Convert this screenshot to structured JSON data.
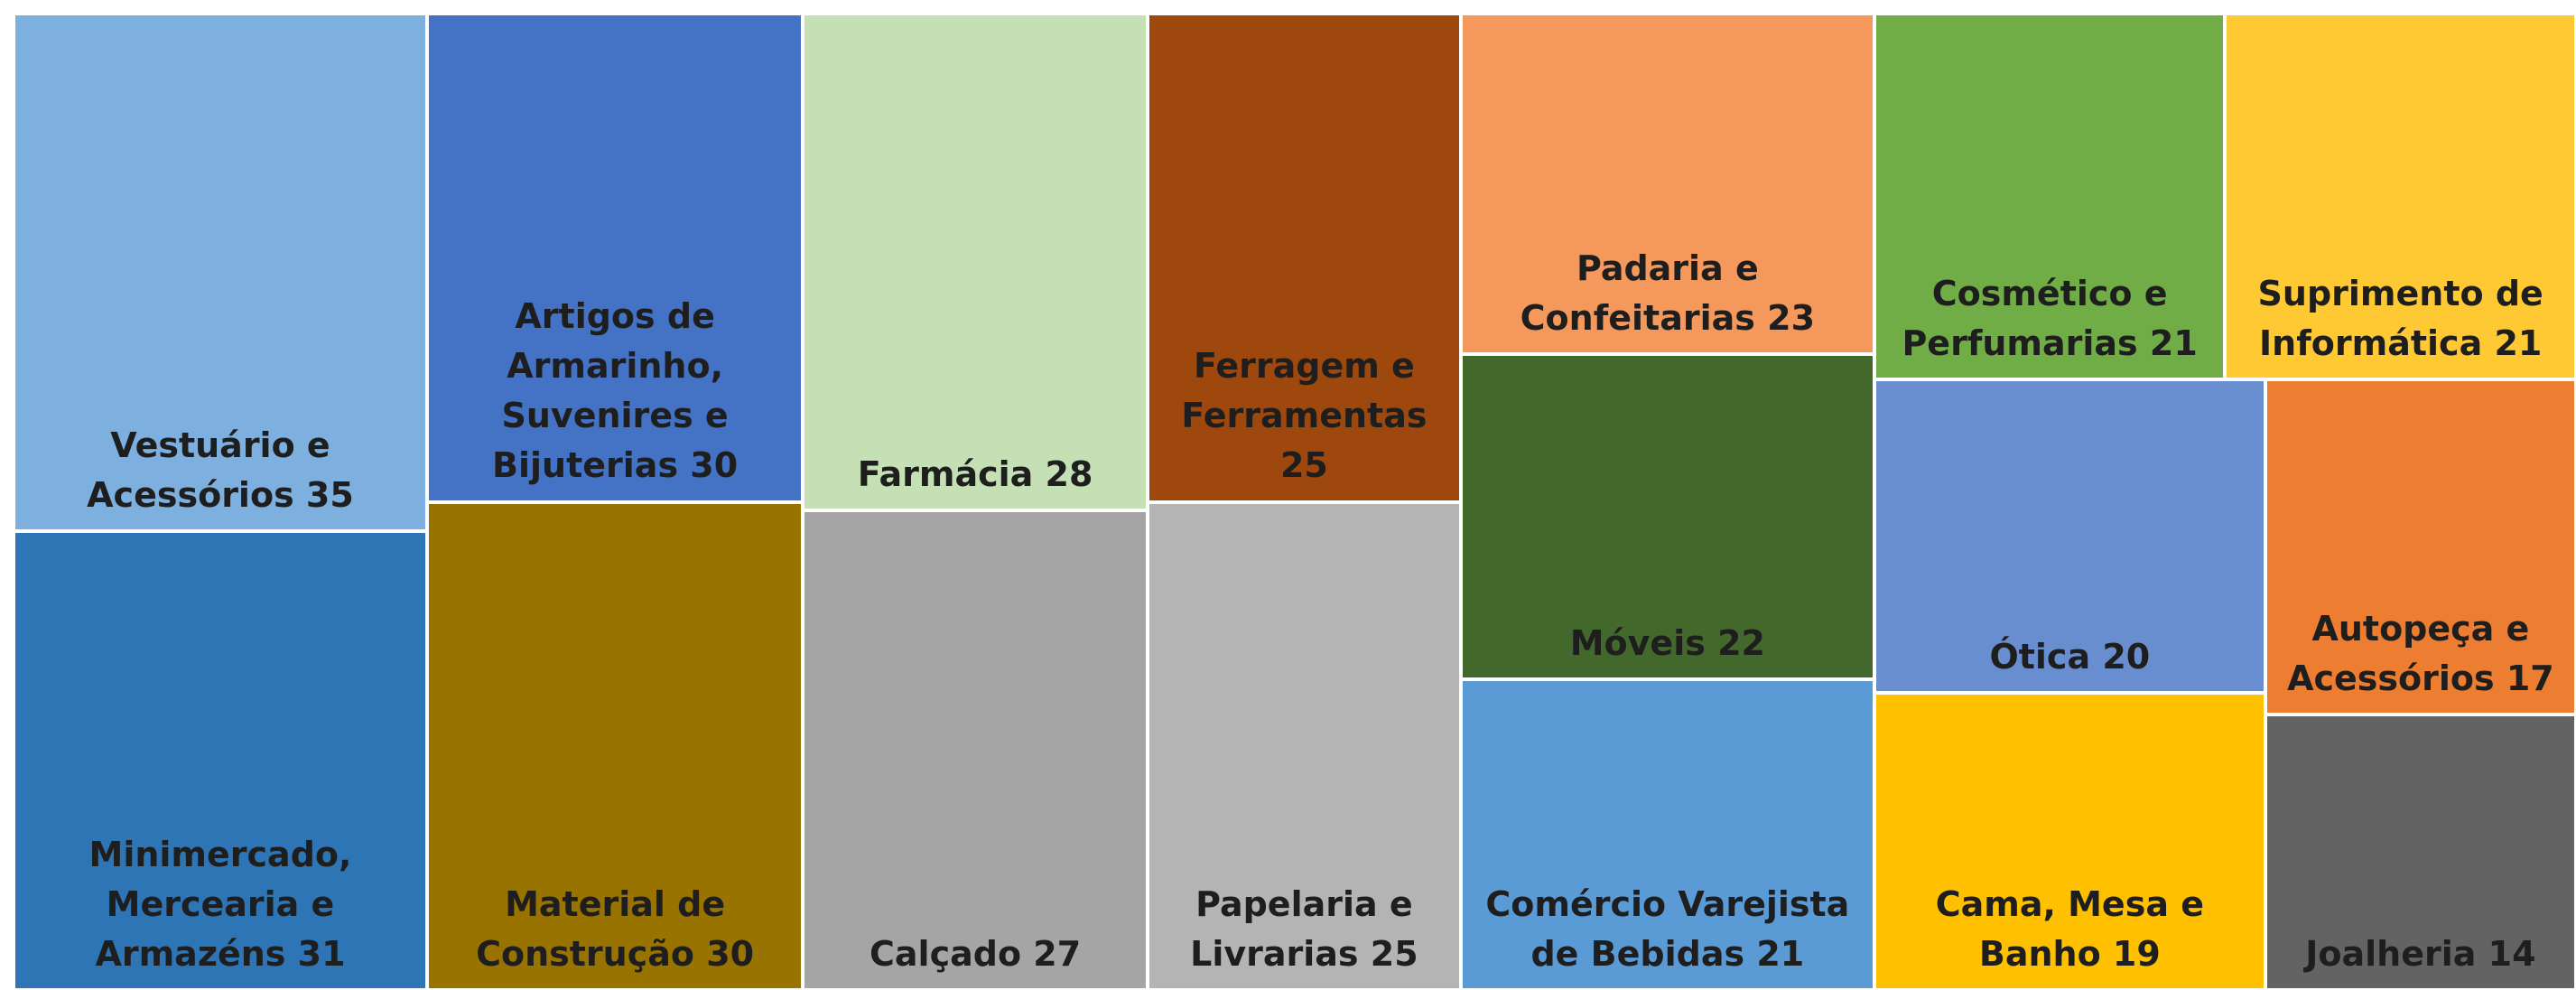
{
  "chart_data": {
    "type": "treemap",
    "categories": [
      "Vestuário e Acessórios",
      "Minimercado, Mercearia e Armazéns",
      "Artigos de Armarinho, Suvenires e Bijuterias",
      "Material de Construção",
      "Farmácia",
      "Calçado",
      "Ferragem e Ferramentas",
      "Papelaria e Livrarias",
      "Padaria e Confeitarias",
      "Móveis",
      "Comércio Varejista de Bebidas",
      "Cosmético e Perfumarias",
      "Suprimento de Informática",
      "Ótica",
      "Cama, Mesa e Banho",
      "Autopeça e Acessórios",
      "Joalheria"
    ],
    "values": [
      35,
      31,
      30,
      30,
      28,
      27,
      25,
      25,
      23,
      22,
      21,
      21,
      21,
      20,
      19,
      17,
      14
    ],
    "colors": [
      "#7dafdf",
      "#2e75b6",
      "#4472c4",
      "#997300",
      "#c5e0b4",
      "#a5a5a5",
      "#9e480e",
      "#b4b4b4",
      "#f4995b",
      "#43682b",
      "#5b9bd5",
      "#70ad47",
      "#ffc933",
      "#698ed0",
      "#ffc000",
      "#ed7d31",
      "#636363"
    ]
  }
}
